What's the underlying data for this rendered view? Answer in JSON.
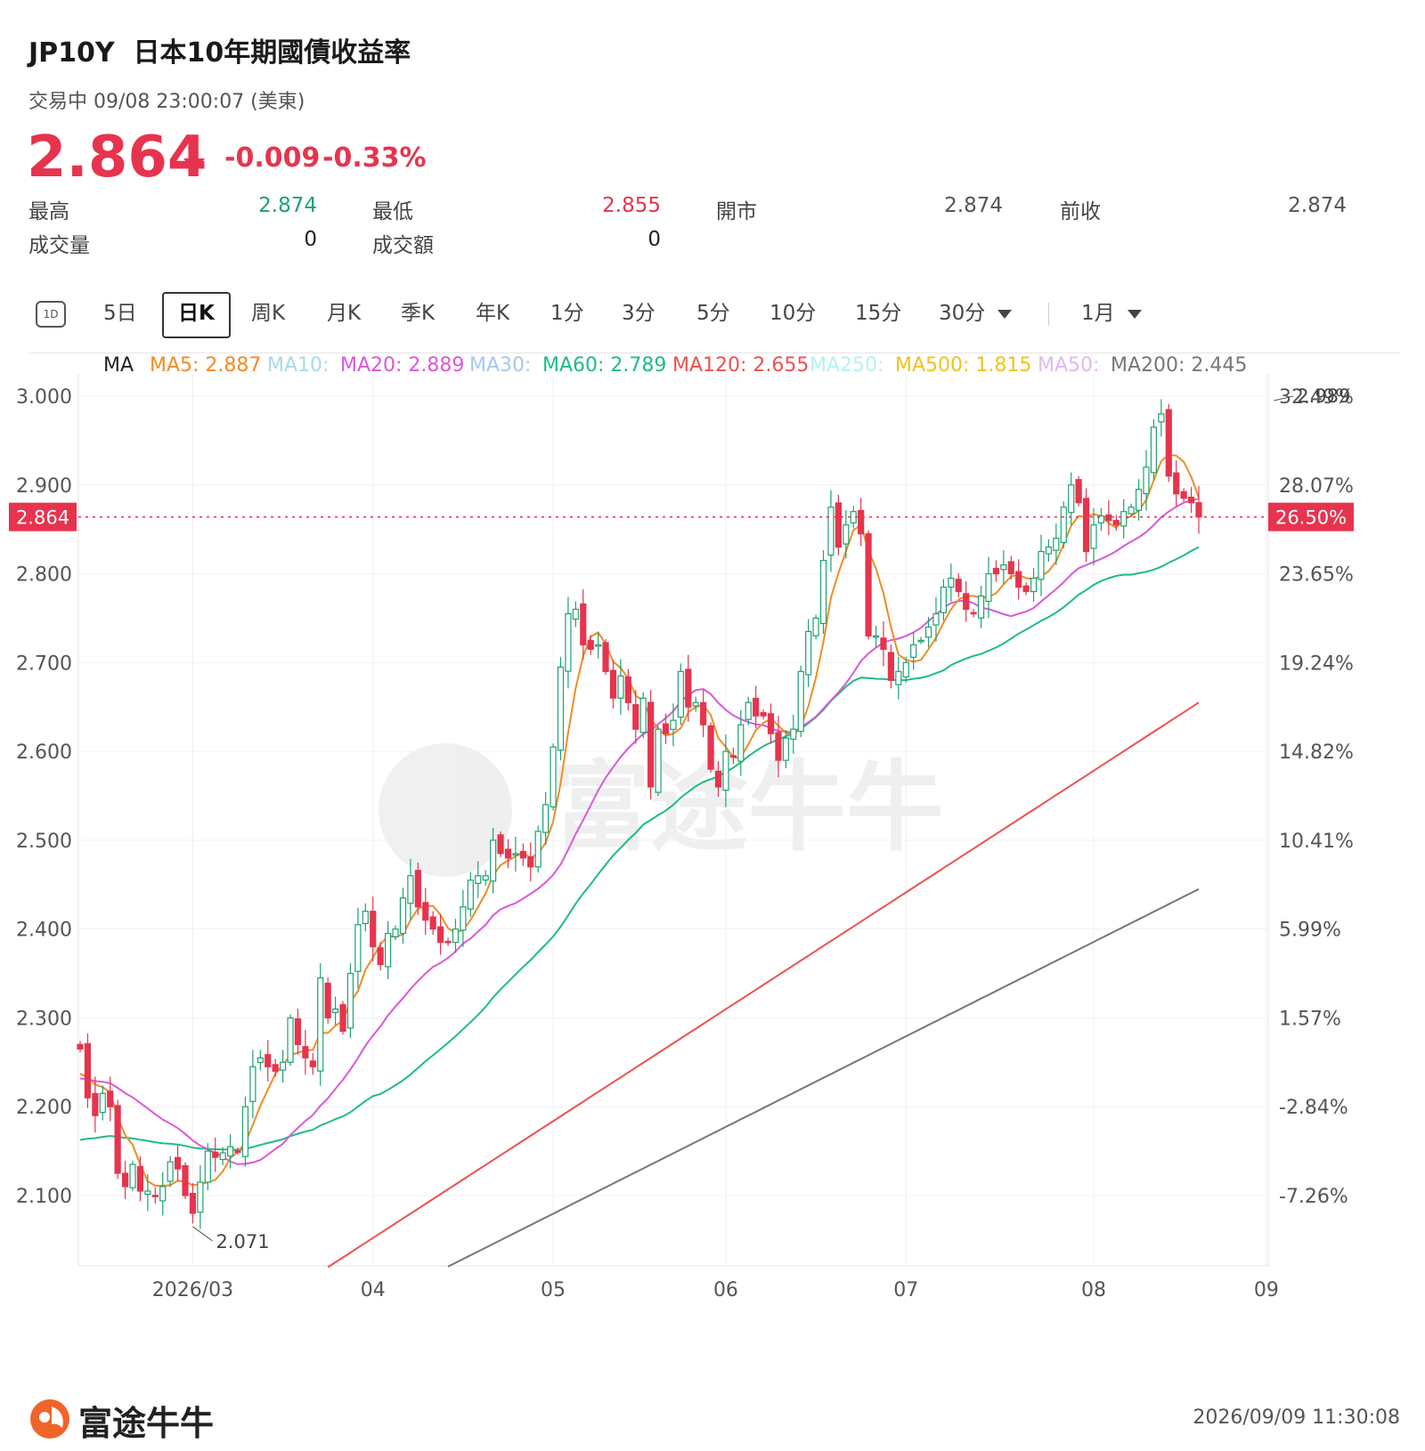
{
  "header": {
    "symbol": "JP10Y",
    "name": "日本10年期國債收益率",
    "status": "交易中 09/08 23:00:07 (美東)",
    "price": "2.864",
    "change": "-0.009",
    "change_pct": "-0.33%",
    "direction": "down"
  },
  "stats": [
    {
      "label": "最高",
      "value": "2.874",
      "color": "green"
    },
    {
      "label": "最低",
      "value": "2.855",
      "color": "red"
    },
    {
      "label": "開市",
      "value": "2.874",
      "color": "gray"
    },
    {
      "label": "前收",
      "value": "2.874",
      "color": "gray"
    },
    {
      "label": "成交量",
      "value": "0",
      "color": "dark"
    },
    {
      "label": "成交額",
      "value": "0",
      "color": "dark"
    }
  ],
  "tabs": [
    {
      "label": "1D",
      "icon": "one-day-icon"
    },
    {
      "label": "5日"
    },
    {
      "label": "日K",
      "active": true
    },
    {
      "label": "周K"
    },
    {
      "label": "月K"
    },
    {
      "label": "季K"
    },
    {
      "label": "年K"
    },
    {
      "label": "1分"
    },
    {
      "label": "3分"
    },
    {
      "label": "5分"
    },
    {
      "label": "10分"
    },
    {
      "label": "15分"
    },
    {
      "label": "30分",
      "dropdown": true
    },
    {
      "label": "1月",
      "dropdown": true
    }
  ],
  "colors": {
    "up": "#1aa36f",
    "down": "#e6344e",
    "MA5": "#f08c26",
    "MA10": "#a8d8ef",
    "MA20": "#d959d9",
    "MA30": "#a9c6ef",
    "MA60": "#1ebc84",
    "MA120": "#ee5050",
    "MA250": "#b8f0f0",
    "MA500": "#f2c21f",
    "MA50": "#e0b8f0",
    "MA200": "#777777"
  },
  "chart_data": {
    "type": "candlestick",
    "y_range": [
      2.02,
      3.01
    ],
    "y_ticks": [
      "3.000",
      "2.900",
      "2.800",
      "2.700",
      "2.600",
      "2.500",
      "2.400",
      "2.300",
      "2.200",
      "2.100"
    ],
    "y_tick_values": [
      3.0,
      2.9,
      2.8,
      2.7,
      2.6,
      2.5,
      2.4,
      2.3,
      2.2,
      2.1
    ],
    "right_ticks": [
      "32.49%",
      "28.07%",
      "23.65%",
      "19.24%",
      "14.82%",
      "10.41%",
      "5.99%",
      "1.57%",
      "-2.84%",
      "-7.26%"
    ],
    "x_labels": [
      {
        "label": "2026/03",
        "index": 15
      },
      {
        "label": "04",
        "index": 39
      },
      {
        "label": "05",
        "index": 63
      },
      {
        "label": "06",
        "index": 86
      },
      {
        "label": "07",
        "index": 110
      },
      {
        "label": "08",
        "index": 135
      },
      {
        "label": "09",
        "index": 158
      }
    ],
    "ma_legend": "MA",
    "ma_entries": [
      {
        "key": "MA5",
        "text": "MA5: 2.887"
      },
      {
        "key": "MA10",
        "text": "MA10:"
      },
      {
        "key": "MA20",
        "text": "MA20: 2.889"
      },
      {
        "key": "MA30",
        "text": "MA30:"
      },
      {
        "key": "MA60",
        "text": "MA60: 2.789"
      },
      {
        "key": "MA120",
        "text": "MA120: 2.655"
      },
      {
        "key": "MA250",
        "text": "MA250:"
      },
      {
        "key": "MA500",
        "text": "MA500: 1.815"
      },
      {
        "key": "MA50",
        "text": "MA50:"
      },
      {
        "key": "MA200",
        "text": "MA200: 2.445"
      }
    ],
    "last_price_label": "2.864",
    "last_pct_label": "26.50%",
    "last_price": 2.864,
    "high_marker": {
      "label": "2.989",
      "value": 2.989,
      "index": 159
    },
    "low_marker": {
      "label": "2.071",
      "value": 2.071,
      "index": 15
    },
    "closes": [
      2.265,
      2.21,
      2.19,
      2.215,
      2.2,
      2.125,
      2.11,
      2.135,
      2.105,
      2.105,
      2.1,
      2.11,
      2.138,
      2.13,
      2.1,
      2.08,
      2.115,
      2.15,
      2.143,
      2.148,
      2.155,
      2.15,
      2.2,
      2.245,
      2.255,
      2.245,
      2.24,
      2.25,
      2.3,
      2.27,
      2.255,
      2.245,
      2.345,
      2.3,
      2.31,
      2.285,
      2.35,
      2.405,
      2.42,
      2.38,
      2.36,
      2.395,
      2.4,
      2.435,
      2.46,
      2.425,
      2.41,
      2.4,
      2.385,
      2.385,
      2.4,
      2.425,
      2.455,
      2.46,
      2.46,
      2.5,
      2.485,
      2.48,
      2.485,
      2.48,
      2.47,
      2.51,
      2.54,
      2.605,
      2.695,
      2.755,
      2.76,
      2.72,
      2.715,
      2.72,
      2.69,
      2.66,
      2.685,
      2.655,
      2.625,
      2.66,
      2.56,
      2.625,
      2.62,
      2.635,
      2.69,
      2.65,
      2.655,
      2.63,
      2.58,
      2.56,
      2.6,
      2.595,
      2.63,
      2.655,
      2.64,
      2.64,
      2.62,
      2.59,
      2.615,
      2.625,
      2.69,
      2.735,
      2.75,
      2.815,
      2.875,
      2.83,
      2.855,
      2.87,
      2.845,
      2.73,
      2.73,
      2.715,
      2.68,
      2.69,
      2.7,
      2.72,
      2.725,
      2.74,
      2.755,
      2.785,
      2.795,
      2.78,
      2.76,
      2.755,
      2.775,
      2.8,
      2.8,
      2.81,
      2.8,
      2.785,
      2.78,
      2.795,
      2.825,
      2.83,
      2.84,
      2.875,
      2.9,
      2.88,
      2.825,
      2.855,
      2.865,
      2.86,
      2.855,
      2.87,
      2.875,
      2.895,
      2.92,
      2.965,
      2.98,
      2.91,
      2.89,
      2.885,
      2.88,
      2.864
    ]
  }
}
